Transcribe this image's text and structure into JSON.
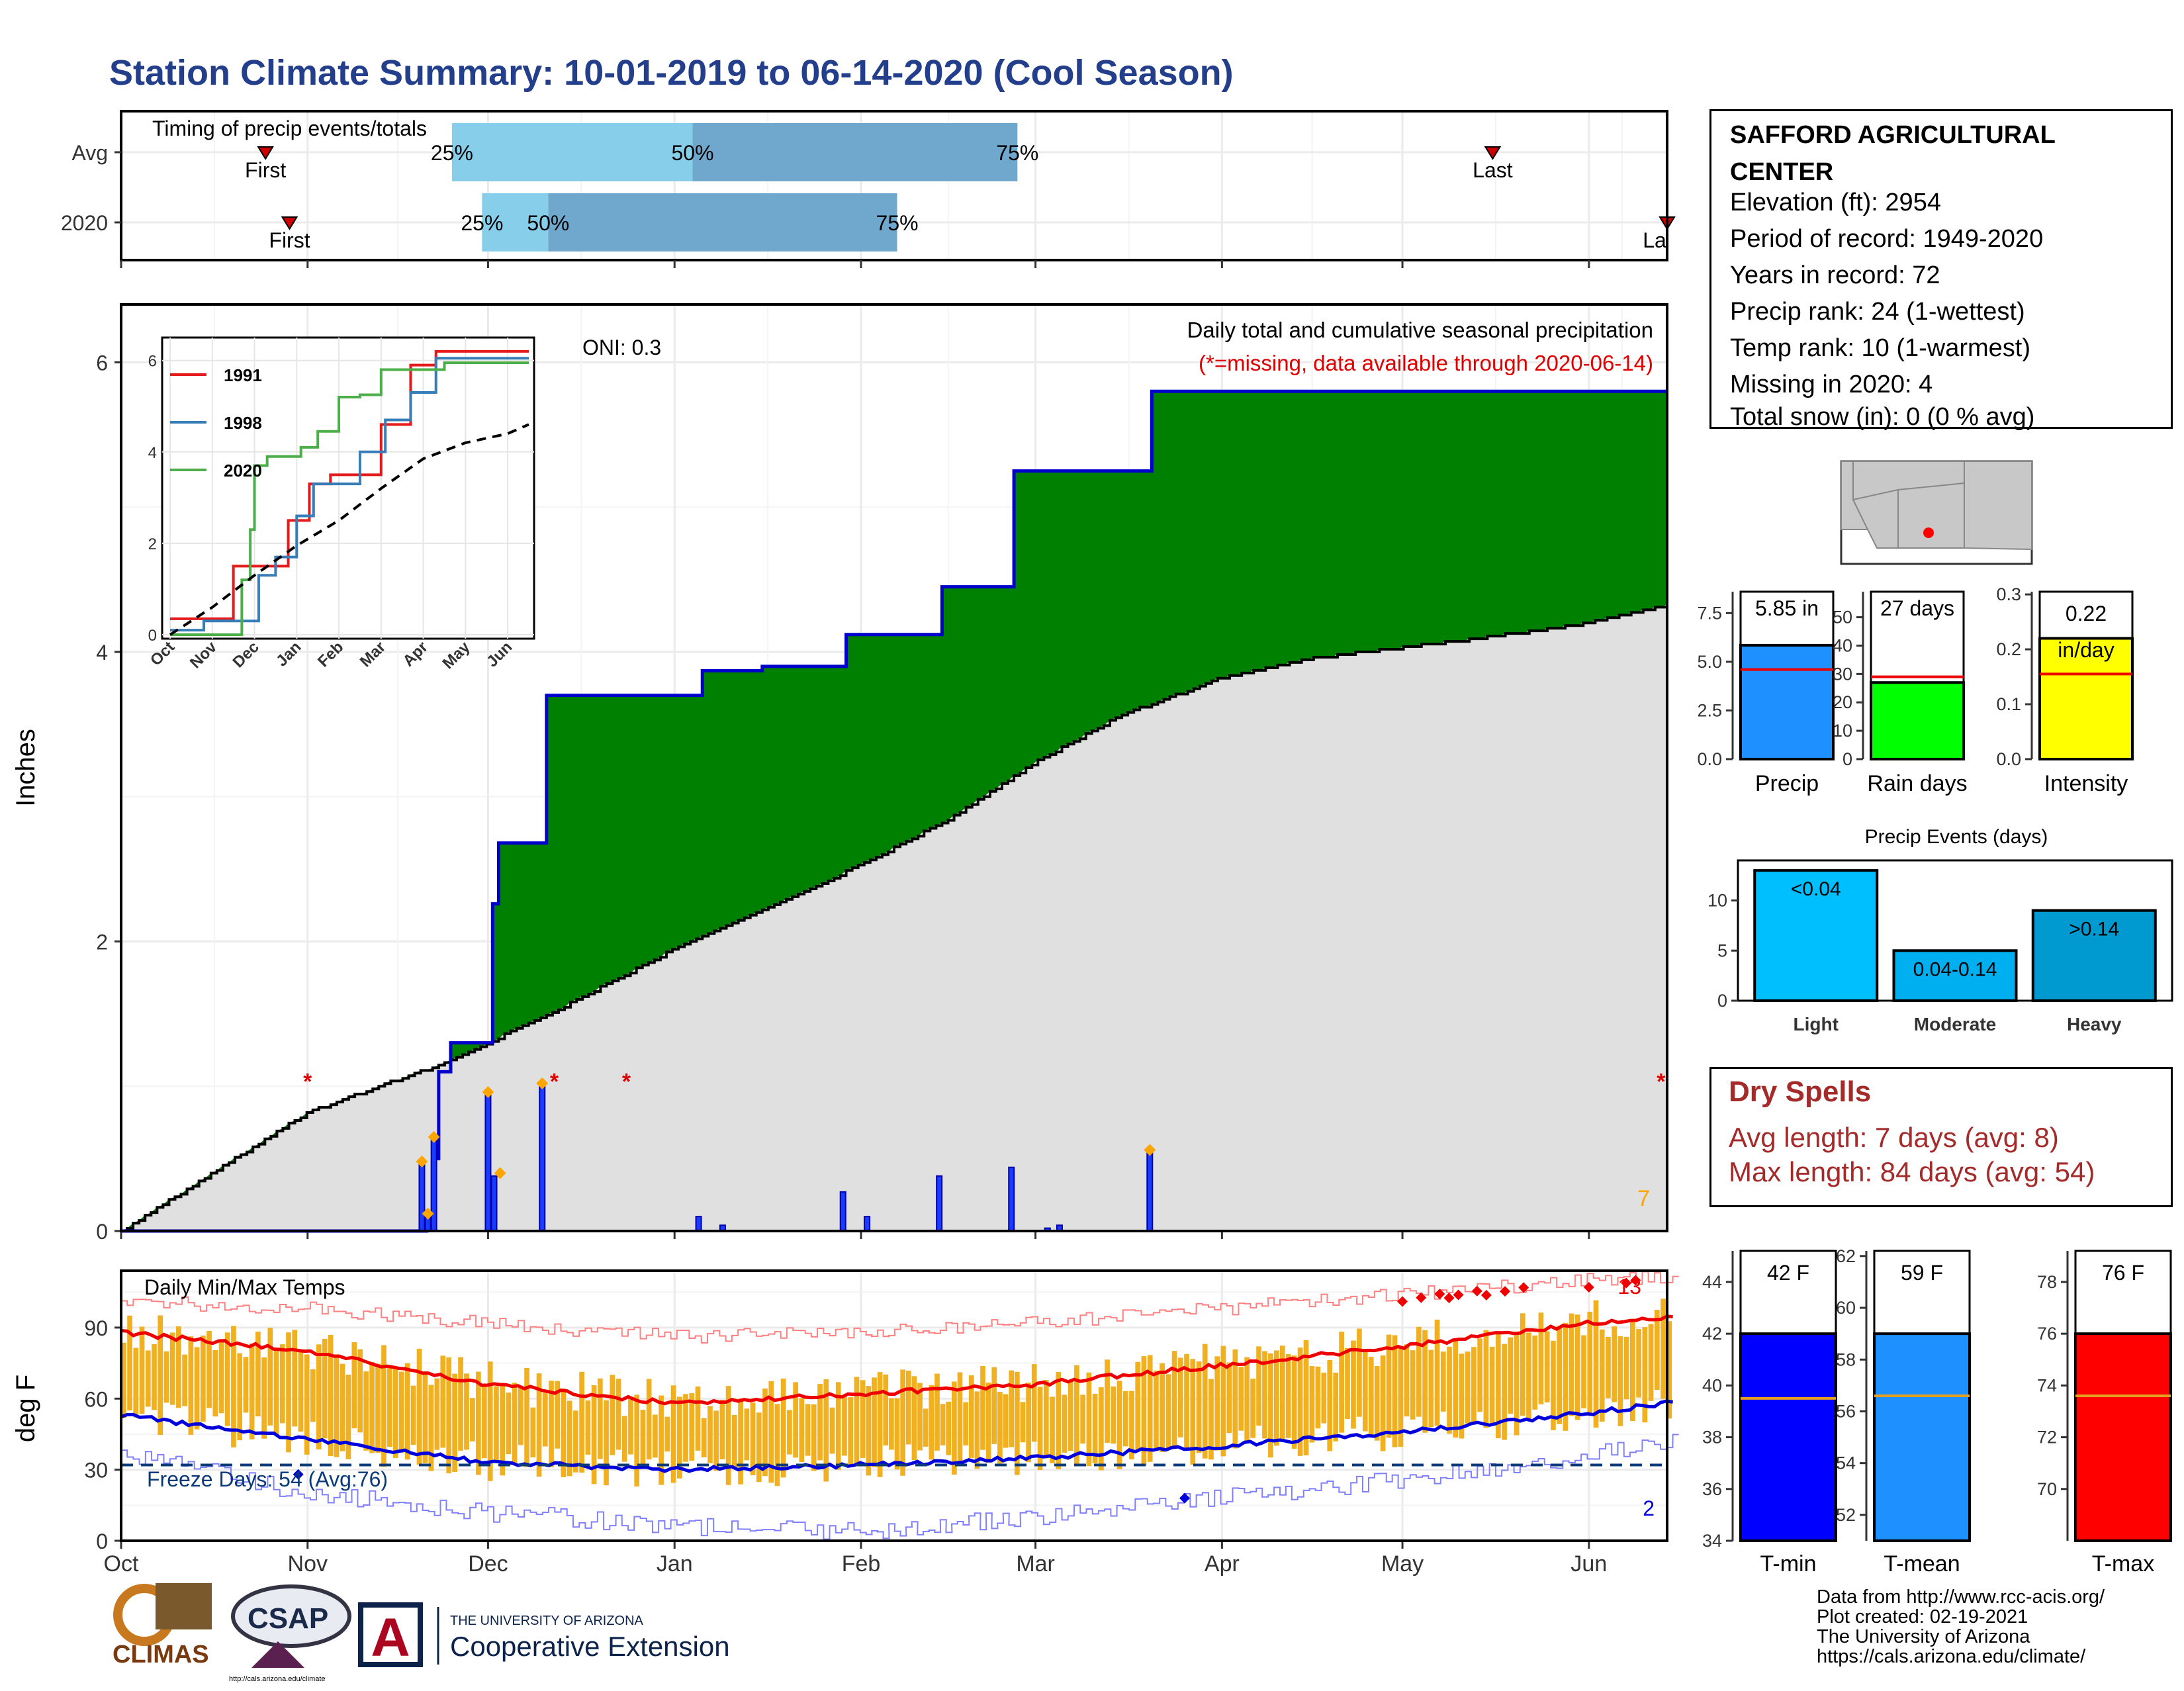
{
  "title": "Station Climate Summary: 10-01-2019 to 06-14-2020 (Cool Season)",
  "timing": {
    "label": "Timing of precip events/totals",
    "rows": [
      {
        "name": "Avg",
        "first_date": "2019-10-25",
        "last_date": "2020-05-16",
        "q25": "2019-11-25",
        "q50": "2020-01-04",
        "q75": "2020-02-27",
        "first_label": "First",
        "last_label": "Last",
        "q25_label": "25%",
        "q50_label": "50%",
        "q75_label": "75%"
      },
      {
        "name": "2020",
        "first_date": "2019-10-29",
        "last_date": "2020-06-14",
        "q25": "2019-11-30",
        "q50": "2019-12-11",
        "q75": "2020-02-07",
        "first_label": "First",
        "last_label": "La",
        "q25_label": "25%",
        "q50_label": "50%",
        "q75_label": "75%"
      }
    ],
    "colors": {
      "light": "#87ceeb",
      "dark": "#6fa8cc",
      "marker": "#cc0000"
    }
  },
  "precip": {
    "ylabel": "Inches",
    "oni_label": "ONI: 0.3",
    "desc_line1": "Daily total and cumulative seasonal precipitation",
    "desc_line2": "(*=missing, data available through 2020-06-14)",
    "count_label": "7",
    "colors": {
      "above": "#008000",
      "below": "#8b5a00",
      "normal_fill": "#e0e0e0",
      "outline": "#0000cc",
      "missing": "#e00000",
      "daily": "#1a3cff",
      "extreme": "#ffa500"
    }
  },
  "inset": {
    "legend": [
      {
        "name": "1991",
        "color": "#e41a1c"
      },
      {
        "name": "1998",
        "color": "#377eb8"
      },
      {
        "name": "2020",
        "color": "#4daf4a"
      }
    ]
  },
  "temps": {
    "label": "Daily Min/Max Temps",
    "ylabel": "deg F",
    "freeze_label": "Freeze Days: 54 (Avg:76)",
    "count_high": "13",
    "count_low": "2",
    "colors": {
      "bar": "#f0b020",
      "max_avg": "#ee0000",
      "min_avg": "#0000dd",
      "freeze": "#0a3a7a"
    }
  },
  "x_axis": {
    "months": [
      "Oct",
      "Nov",
      "Dec",
      "Jan",
      "Feb",
      "Mar",
      "Apr",
      "May",
      "Jun"
    ]
  },
  "station": {
    "name": "SAFFORD AGRICULTURAL CENTER",
    "lines": [
      "Elevation (ft): 2954",
      "Period of record: 1949-2020",
      "Years in record: 72",
      "Precip rank: 24 (1-wettest)",
      "Temp rank: 10 (1-warmest)",
      "Missing in 2020: 4",
      "Total snow (in): 0 (0 % avg)"
    ]
  },
  "dry_spells": {
    "title": "Dry Spells",
    "avg_line": "Avg length: 7 days (avg: 8)",
    "max_line": "Max length: 84 days (avg: 54)"
  },
  "credits": [
    "Data from http://www.rcc-acis.org/",
    "Plot created: 02-19-2021",
    "The University of Arizona",
    "https://cals.arizona.edu/climate/"
  ],
  "logos": {
    "climas": "CLIMAS",
    "csap": "CSAP",
    "csap_url": "http://cals.arizona.edu/climate",
    "ua_line1": "THE UNIVERSITY OF ARIZONA",
    "ua_line2": "Cooperative Extension"
  },
  "chart_data": [
    {
      "type": "area",
      "name": "cumulative_precip",
      "x_dates": [
        "2019-10-01",
        "2019-10-15",
        "2019-11-01",
        "2019-11-20",
        "2019-11-21",
        "2019-11-22",
        "2019-11-24",
        "2019-12-01",
        "2019-12-02",
        "2019-12-05",
        "2019-12-10",
        "2020-01-01",
        "2020-01-05",
        "2020-01-15",
        "2020-01-29",
        "2020-02-14",
        "2020-02-26",
        "2020-03-01",
        "2020-03-20",
        "2020-06-14"
      ],
      "observed": [
        0,
        0,
        0,
        0.02,
        0.5,
        1.1,
        1.3,
        2.26,
        2.68,
        2.68,
        3.7,
        3.7,
        3.87,
        3.9,
        4.12,
        4.45,
        5.25,
        5.25,
        5.8,
        5.8
      ],
      "normal": {
        "x_dates": [
          "2019-10-01",
          "2019-11-01",
          "2019-11-21",
          "2019-12-01",
          "2019-12-15",
          "2020-01-01",
          "2020-01-15",
          "2020-02-01",
          "2020-02-15",
          "2020-03-01",
          "2020-03-15",
          "2020-04-01",
          "2020-04-15",
          "2020-05-01",
          "2020-05-15",
          "2020-06-01",
          "2020-06-14"
        ],
        "values": [
          0,
          0.82,
          1.12,
          1.3,
          1.58,
          1.95,
          2.2,
          2.53,
          2.83,
          3.24,
          3.56,
          3.82,
          3.95,
          4.03,
          4.1,
          4.2,
          4.32
        ]
      },
      "ylim": [
        0,
        6.4
      ],
      "missing_dates": [
        "2019-11-01",
        "2019-12-12",
        "2019-12-24",
        "2020-06-13"
      ]
    },
    {
      "type": "bar",
      "name": "daily_precip",
      "x_dates": [
        "2019-11-20",
        "2019-11-21",
        "2019-11-22",
        "2019-12-01",
        "2019-12-02",
        "2019-12-10",
        "2020-01-05",
        "2020-01-09",
        "2020-01-29",
        "2020-02-02",
        "2020-02-14",
        "2020-02-26",
        "2020-03-03",
        "2020-03-05",
        "2020-03-20"
      ],
      "values": [
        0.48,
        0.12,
        0.65,
        0.96,
        0.38,
        1.02,
        0.1,
        0.04,
        0.27,
        0.1,
        0.38,
        0.44,
        0.02,
        0.04,
        0.56
      ],
      "extreme_dates": [
        "2019-11-20",
        "2019-11-21",
        "2019-11-22",
        "2019-12-01",
        "2019-12-03",
        "2019-12-10",
        "2020-03-20"
      ]
    },
    {
      "type": "line",
      "name": "inset_cumulative",
      "x_ticks": [
        "Oct",
        "Nov",
        "Dec",
        "Jan",
        "Feb",
        "Mar",
        "Apr",
        "May",
        "Jun"
      ],
      "ylim": [
        0,
        6.3
      ],
      "series": [
        {
          "name": "1991",
          "x_months": [
            0,
            1.3,
            1.5,
            2.3,
            2.8,
            3.3,
            3.8,
            4.4,
            5.0,
            5.7,
            6.3,
            8.5
          ],
          "values": [
            0.35,
            0.35,
            1.5,
            1.5,
            2.5,
            3.3,
            3.5,
            3.5,
            4.6,
            5.9,
            6.2,
            6.2
          ]
        },
        {
          "name": "1998",
          "x_months": [
            0,
            0.8,
            1.5,
            2.1,
            2.5,
            3.0,
            3.4,
            3.9,
            4.5,
            5.1,
            5.7,
            6.3,
            8.5
          ],
          "values": [
            0.1,
            0.3,
            0.3,
            1.3,
            1.7,
            2.6,
            3.3,
            3.3,
            4.0,
            4.7,
            5.3,
            6.05,
            6.05
          ]
        },
        {
          "name": "2020",
          "x_months": [
            0,
            1.6,
            1.7,
            1.9,
            2.0,
            2.3,
            3.1,
            3.5,
            4.0,
            4.5,
            5.0,
            5.6,
            6.5,
            8.5
          ],
          "values": [
            0,
            0,
            1.2,
            2.3,
            3.7,
            3.9,
            4.1,
            4.45,
            5.2,
            5.25,
            5.8,
            5.8,
            5.95,
            5.95
          ]
        },
        {
          "name": "average",
          "x_months": [
            0,
            1,
            2,
            3,
            4,
            5,
            6,
            7,
            8,
            8.5
          ],
          "values": [
            0,
            0.6,
            1.3,
            1.95,
            2.5,
            3.2,
            3.85,
            4.2,
            4.4,
            4.6
          ]
        }
      ]
    },
    {
      "type": "bar",
      "name": "daily_temperature_range",
      "x_months_avg": [
        0,
        1,
        2,
        3,
        4,
        5,
        6,
        7,
        8,
        8.5
      ],
      "avg_max": [
        88,
        80,
        66,
        58,
        62,
        66,
        74,
        82,
        92,
        95
      ],
      "avg_min": [
        53,
        43,
        33,
        30,
        32,
        35,
        40,
        46,
        54,
        59
      ],
      "record_high": [
        101,
        98,
        92,
        86,
        88,
        92,
        98,
        104,
        110,
        112
      ],
      "record_low": [
        38,
        20,
        12,
        6,
        4,
        10,
        18,
        26,
        36,
        42
      ],
      "freeze_line": 32,
      "ylim": [
        0,
        114
      ]
    },
    {
      "type": "bar",
      "name": "precip_summary",
      "categories": [
        "Precip",
        "Rain days",
        "Intensity"
      ],
      "values": [
        5.85,
        27,
        0.22
      ],
      "avg": [
        4.6,
        29,
        0.155
      ],
      "labels": [
        "5.85 in",
        "27 days",
        "0.22 in/day"
      ],
      "colors": [
        "#1e90ff",
        "#00ff00",
        "#ffff00"
      ],
      "ylims": [
        [
          0,
          8.6
        ],
        [
          0,
          59
        ],
        [
          0,
          0.305
        ]
      ]
    },
    {
      "type": "bar",
      "name": "precip_events",
      "title": "Precip Events (days)",
      "categories": [
        "Light",
        "Moderate",
        "Heavy"
      ],
      "values": [
        13,
        5,
        9
      ],
      "labels": [
        "<0.04",
        "0.04-0.14",
        ">0.14"
      ],
      "colors": [
        "#00bfff",
        "#00aff0",
        "#0099d0"
      ],
      "ylim": [
        0,
        14
      ]
    },
    {
      "type": "bar",
      "name": "temp_summary",
      "categories": [
        "T-min",
        "T-mean",
        "T-max"
      ],
      "values": [
        42,
        59,
        76
      ],
      "avg": [
        39.5,
        56.6,
        73.6
      ],
      "labels": [
        "42 F",
        "59 F",
        "76 F"
      ],
      "colors": [
        "#0000ff",
        "#1e90ff",
        "#ff0000"
      ],
      "ylims": [
        [
          34,
          45.2
        ],
        [
          51,
          62.2
        ],
        [
          68,
          79.2
        ]
      ]
    }
  ]
}
